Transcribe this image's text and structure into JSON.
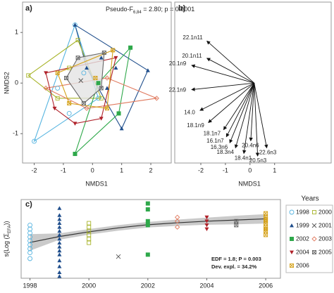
{
  "chart_data": [
    {
      "type": "scatter",
      "panel_label": "a)",
      "annotation": [
        "Pseudo-F",
        "6,84",
        " = 2.80; p = 0.0001"
      ],
      "xlabel": "NMDS1",
      "ylabel": "NMDS2",
      "xlim": [
        -2.4,
        2.7
      ],
      "ylim": [
        -1.58,
        1.6
      ],
      "xticks": [
        -2,
        -1,
        0,
        1,
        2
      ],
      "yticks": [
        -1,
        0,
        1
      ],
      "hulls": true,
      "series": [
        {
          "color": "#56b4e0",
          "marker": "circle",
          "x": [
            -2.0,
            -0.6,
            -1.2,
            -0.3,
            0.2,
            -0.8
          ],
          "values": [
            -1.15,
            1.15,
            -0.1,
            0.2,
            -0.3,
            -0.6
          ]
        },
        {
          "color": "#1f4e8c",
          "marker": "triangle",
          "x": [
            -0.6,
            1.9,
            1.0,
            0.3,
            0.8,
            -0.2,
            0.5
          ],
          "values": [
            1.15,
            0.25,
            -0.9,
            0.5,
            0.3,
            0.3,
            -0.1
          ]
        },
        {
          "color": "#a8b42a",
          "marker": "square",
          "x": [
            -2.2,
            -0.5,
            0.3,
            -1.2,
            -0.8
          ],
          "values": [
            0.15,
            0.85,
            -0.3,
            -0.3,
            0.3
          ]
        },
        {
          "color": "#555555",
          "marker": "x",
          "x": [
            -0.4
          ],
          "values": [
            0.05
          ]
        },
        {
          "color": "#2ea84a",
          "marker": "square-filled",
          "x": [
            1.3,
            -0.6,
            0.9,
            0.2
          ],
          "values": [
            0.7,
            -1.4,
            -0.6,
            0.0
          ]
        },
        {
          "color": "#e07a5f",
          "marker": "diamond",
          "x": [
            -1.6,
            -0.2,
            2.2,
            0.5
          ],
          "values": [
            -0.1,
            -0.5,
            -0.3,
            0.1
          ]
        },
        {
          "color": "#b0222a",
          "marker": "triangle-down",
          "x": [
            -1.3,
            -1.6,
            0.3,
            0.8,
            -0.6
          ],
          "values": [
            -0.5,
            0.2,
            -0.7,
            0.5,
            -0.8
          ]
        },
        {
          "color": "#666666",
          "marker": "square-x",
          "fill": "#e3e3e3",
          "x": [
            -0.5,
            0.4,
            0.3,
            -0.3,
            -0.9
          ],
          "values": [
            0.5,
            0.6,
            -0.1,
            -0.4,
            0.1
          ]
        },
        {
          "color": "#d4a017",
          "marker": "square-x",
          "x": [
            -1.2,
            0.7,
            0.5,
            -0.8,
            0.1
          ],
          "values": [
            0.2,
            0.65,
            -0.5,
            -0.4,
            0.1
          ]
        }
      ]
    },
    {
      "type": "biplot",
      "panel_label": "b)",
      "xlabel": "NMDS1",
      "xlim": [
        -3.06,
        3.3
      ],
      "ylim": [
        -1.58,
        1.6
      ],
      "xticks": [
        -2,
        -1,
        0,
        1
      ],
      "origin": [
        0.17,
        0
      ],
      "arrows": [
        {
          "label": "22.1n11",
          "x": -1.75,
          "y": 0.83
        },
        {
          "label": "20.1n11",
          "x": -1.75,
          "y": 0.49
        },
        {
          "label": "20.1n9",
          "x": -2.37,
          "y": 0.35
        },
        {
          "label": "22.1n9",
          "x": -2.37,
          "y": -0.13
        },
        {
          "label": "14.0",
          "x": -2.03,
          "y": -0.54
        },
        {
          "label": "18.1n9",
          "x": -1.69,
          "y": -0.78
        },
        {
          "label": "18.1n7",
          "x": -1.07,
          "y": -0.92
        },
        {
          "label": "16.1n7",
          "x": -0.96,
          "y": -1.06
        },
        {
          "label": "16.3n6",
          "x": -0.82,
          "y": -1.18
        },
        {
          "label": "18.3n4",
          "x": -0.59,
          "y": -1.28
        },
        {
          "label": "18.4n1",
          "x": -0.25,
          "y": -1.39
        },
        {
          "label": "20.4n6",
          "x": 0.03,
          "y": -1.14
        },
        {
          "label": "22.6n3",
          "x": 0.68,
          "y": -1.28
        },
        {
          "label": "20.5n3",
          "x": 0.31,
          "y": -1.44
        }
      ]
    },
    {
      "type": "gam",
      "panel_label": "c)",
      "ylabel": [
        "s(Log (Σ",
        "EFA",
        "))"
      ],
      "annotations": [
        "EDF = 1.8; P = 0.003",
        "Dev. expl. = 34.2%"
      ],
      "legend_title": "Years",
      "xlim": [
        1997.7,
        2006.5
      ],
      "ylim": [
        -1,
        1
      ],
      "xticks": [
        1998,
        2000,
        2002,
        2004,
        2006
      ],
      "fit": {
        "x": [
          1998,
          1999,
          2000,
          2001,
          2002,
          2003,
          2004,
          2005,
          2006
        ],
        "values": [
          -0.09,
          0.06,
          0.18,
          0.28,
          0.36,
          0.41,
          0.45,
          0.48,
          0.51
        ],
        "lower": [
          -0.3,
          -0.02,
          0.11,
          0.21,
          0.29,
          0.33,
          0.36,
          0.37,
          0.39
        ],
        "upper": [
          0.12,
          0.14,
          0.25,
          0.35,
          0.43,
          0.49,
          0.54,
          0.59,
          0.63
        ]
      },
      "series": [
        {
          "name": "1998",
          "x": 1998,
          "color": "#56b4e0",
          "marker": "circle",
          "values": [
            0.35,
            0.25,
            0.15,
            0.05,
            -0.05,
            -0.15,
            -0.25,
            -0.35,
            -0.5
          ]
        },
        {
          "name": "1999",
          "x": 1999,
          "color": "#1f4e8c",
          "marker": "triangle",
          "values": [
            0.78,
            0.6,
            0.5,
            0.4,
            0.3,
            0.2,
            0.1,
            0.0,
            -0.1,
            -0.2,
            -0.3,
            -0.4,
            -0.55,
            -0.7,
            -0.85,
            -0.95
          ]
        },
        {
          "name": "2000",
          "x": 2000,
          "color": "#a8b42a",
          "marker": "square",
          "values": [
            0.4,
            0.3,
            0.2,
            0.1,
            0.0,
            -0.1
          ]
        },
        {
          "name": "2001",
          "x": 2001,
          "color": "#555555",
          "marker": "x",
          "values": [
            -0.45
          ]
        },
        {
          "name": "2002",
          "x": 2002,
          "color": "#2ea84a",
          "marker": "square-filled",
          "values": [
            0.9,
            0.75,
            0.45,
            0.35,
            -0.4
          ]
        },
        {
          "name": "2003",
          "x": 2003,
          "color": "#e07a5f",
          "marker": "diamond",
          "values": [
            0.55,
            0.45,
            0.3
          ]
        },
        {
          "name": "2004",
          "x": 2004,
          "color": "#b0222a",
          "marker": "triangle-down",
          "values": [
            0.55,
            0.45,
            0.35,
            0.25
          ]
        },
        {
          "name": "2005",
          "x": 2005,
          "color": "#666666",
          "marker": "square-x",
          "values": [
            0.45,
            0.35
          ]
        },
        {
          "name": "2006",
          "x": 2006,
          "color": "#d4a017",
          "marker": "square-x",
          "values": [
            0.65,
            0.55,
            0.5,
            0.45,
            0.4,
            0.3,
            0.25,
            0.2,
            0.1
          ]
        }
      ]
    }
  ]
}
